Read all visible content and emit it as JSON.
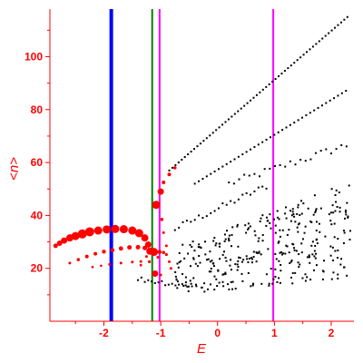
{
  "chart_data": {
    "type": "scatter",
    "xlabel": "E",
    "ylabel": "<n>",
    "xlim": [
      -2.95,
      2.4
    ],
    "ylim": [
      0,
      118
    ],
    "x_ticks": [
      {
        "value": -2,
        "label": "-2"
      },
      {
        "value": -1,
        "label": "-1"
      },
      {
        "value": 0,
        "label": "0"
      },
      {
        "value": 1,
        "label": "1"
      },
      {
        "value": 2,
        "label": "2"
      }
    ],
    "y_ticks": [
      {
        "value": 20,
        "label": "20"
      },
      {
        "value": 40,
        "label": "40"
      },
      {
        "value": 60,
        "label": "60"
      },
      {
        "value": 80,
        "label": "80"
      },
      {
        "value": 100,
        "label": "100"
      }
    ],
    "grid": false,
    "colors": {
      "axis": "#ff0000",
      "red_markers": "#ff0000",
      "black_points": "#000000",
      "blue_line": "#0000ff",
      "green_line": "#008000",
      "magenta_line": "#ff00ff"
    },
    "vertical_lines": [
      {
        "x": -1.87,
        "color": "#0000ff",
        "width": 4
      },
      {
        "x": -1.15,
        "color": "#008000",
        "width": 2
      },
      {
        "x": -1.02,
        "color": "#ff00ff",
        "width": 2
      },
      {
        "x": 0.98,
        "color": "#ff00ff",
        "width": 2
      }
    ],
    "red_series": [
      {
        "x": -2.85,
        "y": 28.5,
        "r": 2.5
      },
      {
        "x": -2.78,
        "y": 29.5,
        "r": 3
      },
      {
        "x": -2.7,
        "y": 30.5,
        "r": 3.5
      },
      {
        "x": -2.6,
        "y": 31.5,
        "r": 4
      },
      {
        "x": -2.5,
        "y": 32.2,
        "r": 4.5
      },
      {
        "x": -2.38,
        "y": 33,
        "r": 5
      },
      {
        "x": -2.25,
        "y": 33.8,
        "r": 5
      },
      {
        "x": -2.1,
        "y": 34.3,
        "r": 4.5
      },
      {
        "x": -1.95,
        "y": 34.7,
        "r": 4.5
      },
      {
        "x": -1.8,
        "y": 34.9,
        "r": 4.5
      },
      {
        "x": -1.65,
        "y": 34.8,
        "r": 4.5
      },
      {
        "x": -1.5,
        "y": 34.3,
        "r": 4.5
      },
      {
        "x": -1.38,
        "y": 33.3,
        "r": 4.5
      },
      {
        "x": -1.28,
        "y": 31.5,
        "r": 4
      },
      {
        "x": -1.22,
        "y": 29,
        "r": 3.5
      },
      {
        "x": -1.19,
        "y": 26.5,
        "r": 4
      },
      {
        "x": -1.12,
        "y": 26.2,
        "r": 4.5
      },
      {
        "x": -1.08,
        "y": 44,
        "r": 4.5
      },
      {
        "x": -1.0,
        "y": 49,
        "r": 3.5
      },
      {
        "x": -1.1,
        "y": 18,
        "r": 3.5
      },
      {
        "x": -2.6,
        "y": 22,
        "r": 1.5
      },
      {
        "x": -2.45,
        "y": 23.3,
        "r": 1.8
      },
      {
        "x": -2.3,
        "y": 24.5,
        "r": 2
      },
      {
        "x": -2.15,
        "y": 25.5,
        "r": 2
      },
      {
        "x": -2.0,
        "y": 26.3,
        "r": 2.2
      },
      {
        "x": -1.85,
        "y": 26.9,
        "r": 2.2
      },
      {
        "x": -1.7,
        "y": 27.5,
        "r": 2.4
      },
      {
        "x": -1.55,
        "y": 27.9,
        "r": 2.5
      },
      {
        "x": -1.4,
        "y": 28.0,
        "r": 2.5
      },
      {
        "x": -1.28,
        "y": 27.7,
        "r": 2.5
      },
      {
        "x": -1.15,
        "y": 26.8,
        "r": 2.5
      },
      {
        "x": -2.2,
        "y": 20.5,
        "r": 1.3
      },
      {
        "x": -2.05,
        "y": 21.0,
        "r": 1.3
      },
      {
        "x": -1.9,
        "y": 21.5,
        "r": 1.5
      },
      {
        "x": -1.7,
        "y": 22.0,
        "r": 1.5
      },
      {
        "x": -1.5,
        "y": 22.4,
        "r": 1.5
      },
      {
        "x": -1.35,
        "y": 22.6,
        "r": 1.5
      },
      {
        "x": -1.2,
        "y": 22.5,
        "r": 1.6
      },
      {
        "x": -1.02,
        "y": 26.2,
        "r": 2.2
      },
      {
        "x": -0.95,
        "y": 26.0,
        "r": 1.8
      },
      {
        "x": -0.9,
        "y": 25.2,
        "r": 1.6
      },
      {
        "x": -0.85,
        "y": 22.5,
        "r": 1.5
      },
      {
        "x": -0.82,
        "y": 20.0,
        "r": 1.5
      },
      {
        "x": -0.9,
        "y": 28.5,
        "r": 1.5
      },
      {
        "x": -0.95,
        "y": 33.5,
        "r": 1.5
      },
      {
        "x": -0.98,
        "y": 38.5,
        "r": 1.8
      },
      {
        "x": -0.85,
        "y": 55.5,
        "r": 2
      },
      {
        "x": -0.75,
        "y": 58.0,
        "r": 1.8
      },
      {
        "x": -0.95,
        "y": 52.5,
        "r": 2
      },
      {
        "x": -1.25,
        "y": 24.5,
        "r": 1.5
      },
      {
        "x": -1.05,
        "y": 24.2,
        "r": 1.5
      },
      {
        "x": -1.0,
        "y": 17.5,
        "r": 1.5
      },
      {
        "x": -1.35,
        "y": 21.2,
        "r": 1.4
      }
    ],
    "black_points_generated": "arcs and scatter of black dots computed by script"
  }
}
